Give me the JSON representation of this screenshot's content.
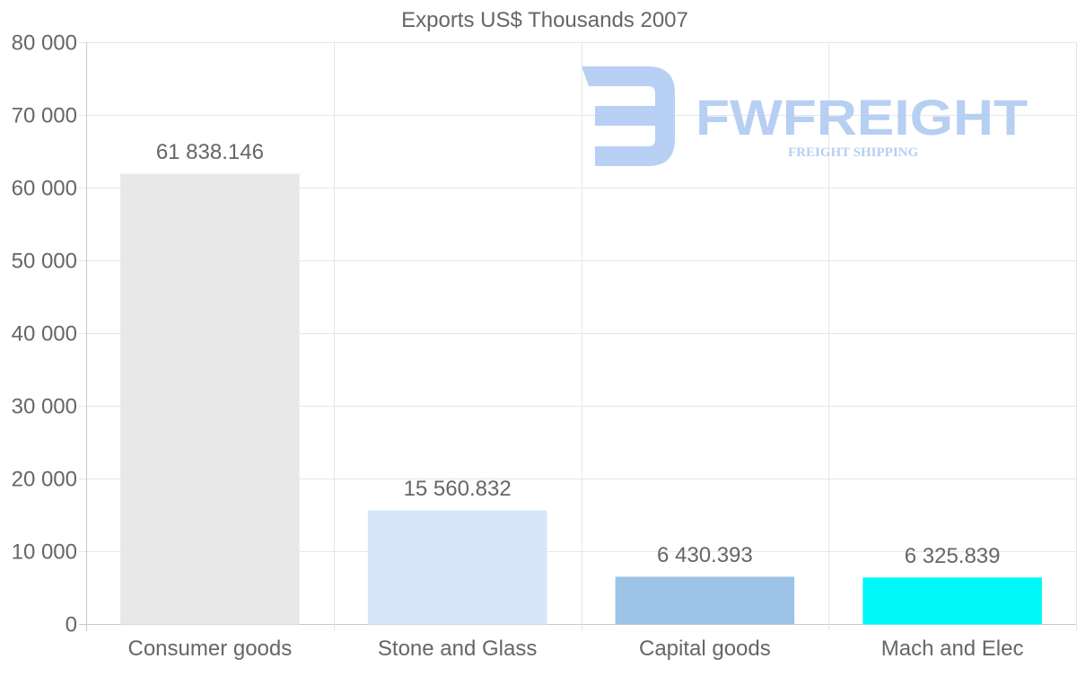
{
  "chart_data": {
    "type": "bar",
    "title": "Exports US$ Thousands 2007",
    "categories": [
      "Consumer goods",
      "Stone and Glass",
      "Capital goods",
      "Mach and Elec"
    ],
    "values": [
      61838.146,
      15560.832,
      6430.393,
      6325.839
    ],
    "value_labels": [
      "61 838.146",
      "15 560.832",
      "6 430.393",
      "6 325.839"
    ],
    "colors": [
      "#e8e8e8",
      "#d6e6f8",
      "#9dc3e6",
      "#00f8f8"
    ],
    "ylim": [
      0,
      80000
    ],
    "yticks": [
      0,
      10000,
      20000,
      30000,
      40000,
      50000,
      60000,
      70000,
      80000
    ],
    "ytick_labels": [
      "0",
      "10 000",
      "20 000",
      "30 000",
      "40 000",
      "50 000",
      "60 000",
      "70 000",
      "80 000"
    ],
    "xlabel": "",
    "ylabel": "",
    "grid": true,
    "legend": "none"
  },
  "watermark": {
    "brand": "FWFREIGHT",
    "tagline": "FREIGHT SHIPPING",
    "icon": "fwfreight-logo-icon"
  }
}
